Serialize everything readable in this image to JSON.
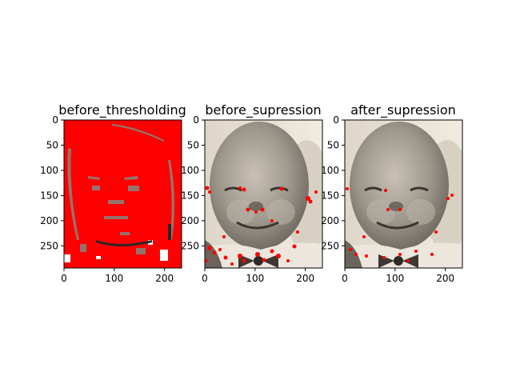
{
  "figure": {
    "panels": [
      {
        "id": "before",
        "title": "before_thresholding",
        "xticks": [
          0,
          100,
          200
        ],
        "yticks": [
          0,
          50,
          100,
          150,
          200,
          250
        ],
        "xlim": [
          0,
          234
        ],
        "ylim": [
          0,
          294
        ]
      },
      {
        "id": "beforesup",
        "title": "before_supression",
        "xticks": [
          0,
          100,
          200
        ],
        "yticks": [
          0,
          50,
          100,
          150,
          200,
          250
        ],
        "xlim": [
          0,
          234
        ],
        "ylim": [
          0,
          294
        ]
      },
      {
        "id": "aftersup",
        "title": "after_supression",
        "xticks": [
          0,
          100,
          200
        ],
        "yticks": [
          0,
          50,
          100,
          150,
          200,
          250
        ],
        "xlim": [
          0,
          234
        ],
        "ylim": [
          0,
          294
        ]
      }
    ],
    "colors": {
      "marker": "#ff0000",
      "photo_bg": "#eae3d6",
      "face": "#a8a095",
      "dark": "#3a3530"
    }
  }
}
